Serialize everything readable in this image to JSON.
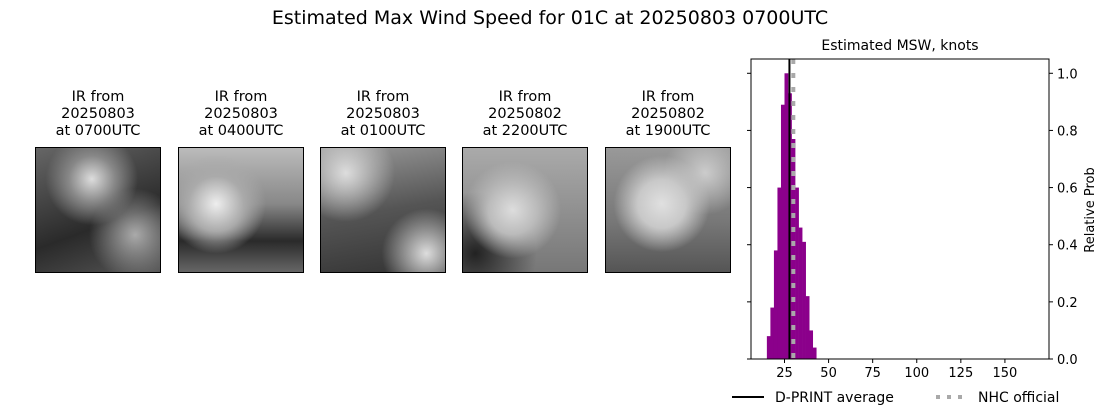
{
  "title": "Estimated Max Wind Speed for 01C at 20250803 0700UTC",
  "panels": [
    {
      "caption": "IR from\n20250803\nat 0700UTC"
    },
    {
      "caption": "IR from\n20250803\nat 0400UTC"
    },
    {
      "caption": "IR from\n20250803\nat 0100UTC"
    },
    {
      "caption": "IR from\n20250802\nat 2200UTC"
    },
    {
      "caption": "IR from\n20250802\nat 1900UTC"
    }
  ],
  "chart_data": {
    "type": "bar",
    "title": "Estimated MSW, knots",
    "ylabel": "Relative Prob",
    "xlim": [
      6,
      175
    ],
    "ylim": [
      0,
      1.05
    ],
    "xticks": [
      25,
      50,
      75,
      100,
      125,
      150
    ],
    "yticks": [
      0.0,
      0.2,
      0.4,
      0.6,
      0.8,
      1.0
    ],
    "bin_width": 2,
    "bin_starts": [
      15,
      17,
      19,
      21,
      23,
      25,
      27,
      29,
      31,
      33,
      35,
      37,
      39,
      41
    ],
    "values": [
      0.08,
      0.18,
      0.38,
      0.6,
      0.89,
      1.0,
      0.93,
      0.77,
      0.6,
      0.46,
      0.41,
      0.22,
      0.1,
      0.04
    ],
    "bar_color": "#8b008b",
    "dprint_average": 27.8,
    "nhc_official": 30,
    "legend": [
      {
        "name": "D-PRINT average",
        "color": "#000000"
      },
      {
        "name": "NHC official",
        "color": "#a9a9a9"
      }
    ],
    "legend_position": "bottom"
  }
}
